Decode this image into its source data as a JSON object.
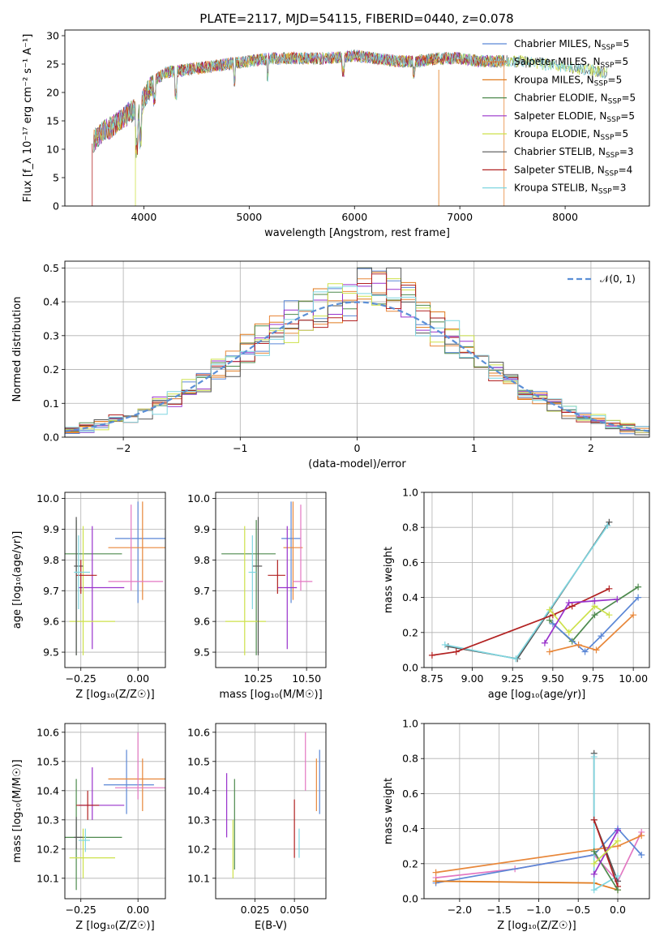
{
  "figure": {
    "title": "PLATE=2117, MJD=54115, FIBERID=0440, z=0.078"
  },
  "colors": {
    "Chabrier MILES": "#5b87d6",
    "Salpeter MILES": "#e8873a",
    "Kroupa MILES": "#e07a1c",
    "Chabrier ELODIE": "#4e8a4e",
    "Salpeter ELODIE": "#9932cc",
    "Kroupa ELODIE": "#cde14a",
    "Chabrier STELIB": "#555555",
    "Salpeter STELIB": "#b22222",
    "Kroupa STELIB": "#7fd6e0",
    "pink": "#e377c2",
    "gauss": "#5b8fd6",
    "grid": "#b0b0b0"
  },
  "chart_data": [
    {
      "id": "spectrum",
      "type": "line",
      "xlabel": "wavelength [Angstrom, rest frame]",
      "ylabel": "Flux [f_λ 10⁻¹⁷ erg cm⁻² s⁻¹ A⁻¹]",
      "xlim": [
        3250,
        8800
      ],
      "ylim": [
        0,
        31
      ],
      "xticks": [
        4000,
        5000,
        6000,
        7000,
        8000
      ],
      "yticks": [
        0,
        5,
        10,
        15,
        20,
        25,
        30
      ],
      "grid": false,
      "legend_position": "right",
      "series": [
        {
          "name": "Chabrier MILES, N_SSP=5"
        },
        {
          "name": "Salpeter MILES, N_SSP=5"
        },
        {
          "name": "Kroupa MILES, N_SSP=5"
        },
        {
          "name": "Chabrier ELODIE, N_SSP=5"
        },
        {
          "name": "Salpeter ELODIE, N_SSP=5"
        },
        {
          "name": "Kroupa ELODIE, N_SSP=5"
        },
        {
          "name": "Chabrier STELIB, N_SSP=3"
        },
        {
          "name": "Salpeter STELIB, N_SSP=4"
        },
        {
          "name": "Kroupa STELIB, N_SSP=3"
        }
      ],
      "continuum": {
        "x": [
          3500,
          3600,
          3700,
          3800,
          3900,
          3950,
          4000,
          4100,
          4200,
          4400,
          4600,
          4800,
          5000,
          5200,
          5400,
          5600,
          5800,
          6000,
          6200,
          6400,
          6600,
          6800,
          7000,
          7200,
          7400,
          7600,
          7800,
          8000,
          8200,
          8400
        ],
        "y": [
          11,
          13,
          14,
          15.5,
          17,
          16,
          19,
          22,
          23.5,
          24,
          24.5,
          25,
          25.5,
          26,
          26,
          26,
          26,
          26.5,
          26,
          25.5,
          25.5,
          26,
          26,
          25.5,
          25.5,
          25.5,
          25,
          24.5,
          24,
          23.5
        ]
      }
    },
    {
      "id": "residuals",
      "type": "step",
      "xlabel": "(data-model)/error",
      "ylabel": "Normed distribution",
      "xlim": [
        -2.5,
        2.5
      ],
      "ylim": [
        0,
        0.52
      ],
      "xticks": [
        -2,
        -1,
        0,
        1,
        2
      ],
      "yticks": [
        0.0,
        0.1,
        0.2,
        0.3,
        0.4,
        0.5
      ],
      "grid": true,
      "legend_position": "top-right",
      "gaussian_label": "𝒩(0, 1)"
    },
    {
      "id": "age_vs_Z",
      "type": "errorbar",
      "xlabel": "Z [log₁₀(Z/Z☉)]",
      "ylabel": "age  [log₁₀(age/yr)]",
      "xlim": [
        -0.32,
        0.12
      ],
      "ylim": [
        9.45,
        10.02
      ],
      "xticks": [
        -0.25,
        0.0
      ],
      "yticks": [
        9.5,
        9.6,
        9.7,
        9.8,
        9.9,
        10.0
      ],
      "grid": true,
      "points": [
        {
          "c": "Chabrier MILES",
          "x": 0.0,
          "xerr": [
            0.1,
            0.12
          ],
          "y": 9.87,
          "yerr": [
            0.21,
            0.12
          ]
        },
        {
          "c": "Salpeter MILES",
          "x": 0.02,
          "xerr": [
            0.15,
            0.1
          ],
          "y": 9.84,
          "yerr": [
            0.17,
            0.15
          ]
        },
        {
          "c": "pink",
          "x": -0.03,
          "xerr": [
            0.1,
            0.14
          ],
          "y": 9.73,
          "yerr": [
            0.03,
            0.25
          ]
        },
        {
          "c": "Chabrier ELODIE",
          "x": -0.27,
          "xerr": [
            0.05,
            0.2
          ],
          "y": 9.82,
          "yerr": [
            0.33,
            0.11
          ]
        },
        {
          "c": "Salpeter ELODIE",
          "x": -0.2,
          "xerr": [
            0.06,
            0.14
          ],
          "y": 9.71,
          "yerr": [
            0.2,
            0.2
          ]
        },
        {
          "c": "Kroupa ELODIE",
          "x": -0.24,
          "xerr": [
            0.06,
            0.14
          ],
          "y": 9.6,
          "yerr": [
            0.11,
            0.31
          ]
        },
        {
          "c": "Chabrier STELIB",
          "x": -0.27,
          "xerr": [
            0.01,
            0.03
          ],
          "y": 9.78,
          "yerr": [
            0.29,
            0.16
          ]
        },
        {
          "c": "Salpeter STELIB",
          "x": -0.25,
          "xerr": [
            0.02,
            0.07
          ],
          "y": 9.75,
          "yerr": [
            0.06,
            0.05
          ]
        },
        {
          "c": "Kroupa STELIB",
          "x": -0.26,
          "xerr": [
            0.02,
            0.05
          ],
          "y": 9.76,
          "yerr": [
            0.12,
            0.12
          ]
        }
      ]
    },
    {
      "id": "age_vs_mass",
      "type": "errorbar",
      "xlabel": "mass [log₁₀(M/M☉)]",
      "ylabel": "",
      "xlim": [
        10.03,
        10.6
      ],
      "ylim": [
        9.45,
        10.02
      ],
      "xticks": [
        10.25,
        10.5
      ],
      "yticks": [
        9.5,
        9.6,
        9.7,
        9.8,
        9.9,
        10.0
      ],
      "grid": true,
      "points": [
        {
          "c": "Chabrier MILES",
          "x": 10.42,
          "xerr": [
            0.05,
            0.05
          ],
          "y": 9.87,
          "yerr": [
            0.21,
            0.12
          ]
        },
        {
          "c": "Salpeter MILES",
          "x": 10.43,
          "xerr": [
            0.05,
            0.05
          ],
          "y": 9.84,
          "yerr": [
            0.17,
            0.15
          ]
        },
        {
          "c": "pink",
          "x": 10.47,
          "xerr": [
            0.04,
            0.06
          ],
          "y": 9.73,
          "yerr": [
            0.03,
            0.25
          ]
        },
        {
          "c": "Chabrier ELODIE",
          "x": 10.24,
          "xerr": [
            0.18,
            0.1
          ],
          "y": 9.82,
          "yerr": [
            0.33,
            0.11
          ]
        },
        {
          "c": "Salpeter ELODIE",
          "x": 10.4,
          "xerr": [
            0.05,
            0.05
          ],
          "y": 9.71,
          "yerr": [
            0.2,
            0.2
          ]
        },
        {
          "c": "Kroupa ELODIE",
          "x": 10.18,
          "xerr": [
            0.1,
            0.11
          ],
          "y": 9.6,
          "yerr": [
            0.11,
            0.31
          ]
        },
        {
          "c": "Chabrier STELIB",
          "x": 10.25,
          "xerr": [
            0.03,
            0.02
          ],
          "y": 9.78,
          "yerr": [
            0.29,
            0.16
          ]
        },
        {
          "c": "Salpeter STELIB",
          "x": 10.35,
          "xerr": [
            0.05,
            0.04
          ],
          "y": 9.75,
          "yerr": [
            0.06,
            0.05
          ]
        },
        {
          "c": "Kroupa STELIB",
          "x": 10.22,
          "xerr": [
            0.02,
            0.02
          ],
          "y": 9.76,
          "yerr": [
            0.12,
            0.12
          ]
        }
      ]
    },
    {
      "id": "weight_vs_age",
      "type": "line",
      "xlabel": "age  [log₁₀(age/yr)]",
      "ylabel": "mass weight",
      "xlim": [
        8.7,
        10.1
      ],
      "ylim": [
        0,
        1.0
      ],
      "xticks": [
        8.75,
        9.0,
        9.25,
        9.5,
        9.75,
        10.0
      ],
      "yticks": [
        0.0,
        0.2,
        0.4,
        0.6,
        0.8,
        1.0
      ],
      "grid": true,
      "series": [
        {
          "c": "Chabrier STELIB",
          "x": [
            8.85,
            9.28,
            9.85
          ],
          "y": [
            0.12,
            0.05,
            0.83
          ]
        },
        {
          "c": "Kroupa STELIB",
          "x": [
            8.83,
            9.27,
            9.84
          ],
          "y": [
            0.13,
            0.05,
            0.81
          ]
        },
        {
          "c": "Salpeter STELIB",
          "x": [
            8.75,
            8.9,
            9.5,
            9.62,
            9.85
          ],
          "y": [
            0.07,
            0.09,
            0.3,
            0.35,
            0.45
          ]
        },
        {
          "c": "Chabrier ELODIE",
          "x": [
            9.48,
            9.62,
            9.76,
            10.03
          ],
          "y": [
            0.27,
            0.15,
            0.3,
            0.46
          ]
        },
        {
          "c": "Chabrier MILES",
          "x": [
            9.5,
            9.7,
            9.8,
            10.03
          ],
          "y": [
            0.25,
            0.09,
            0.18,
            0.4
          ]
        },
        {
          "c": "Salpeter MILES",
          "x": [
            9.48,
            9.66,
            9.77,
            10.0
          ],
          "y": [
            0.09,
            0.13,
            0.1,
            0.3
          ]
        },
        {
          "c": "Kroupa ELODIE",
          "x": [
            9.48,
            9.6,
            9.76,
            9.85
          ],
          "y": [
            0.33,
            0.2,
            0.35,
            0.3
          ]
        },
        {
          "c": "Salpeter ELODIE",
          "x": [
            9.45,
            9.6,
            9.76,
            9.9
          ],
          "y": [
            0.14,
            0.37,
            0.38,
            0.39
          ]
        }
      ]
    },
    {
      "id": "mass_vs_Z",
      "type": "errorbar",
      "xlabel": "Z [log₁₀(Z/Z☉)]",
      "ylabel": "mass [log₁₀(M/M☉)]",
      "xlim": [
        -0.32,
        0.12
      ],
      "ylim": [
        10.03,
        10.63
      ],
      "xticks": [
        -0.25,
        0.0
      ],
      "yticks": [
        10.1,
        10.2,
        10.3,
        10.4,
        10.5,
        10.6
      ],
      "grid": true,
      "points": [
        {
          "c": "Chabrier MILES",
          "x": -0.05,
          "xerr": [
            0.1,
            0.12
          ],
          "y": 10.42,
          "yerr": [
            0.1,
            0.12
          ]
        },
        {
          "c": "Salpeter MILES",
          "x": 0.02,
          "xerr": [
            0.15,
            0.1
          ],
          "y": 10.44,
          "yerr": [
            0.11,
            0.07
          ]
        },
        {
          "c": "pink",
          "x": 0.0,
          "xerr": [
            0.1,
            0.12
          ],
          "y": 10.41,
          "yerr": [
            0.04,
            0.19
          ]
        },
        {
          "c": "Chabrier ELODIE",
          "x": -0.27,
          "xerr": [
            0.05,
            0.2
          ],
          "y": 10.24,
          "yerr": [
            0.18,
            0.2
          ]
        },
        {
          "c": "Salpeter ELODIE",
          "x": -0.2,
          "xerr": [
            0.06,
            0.14
          ],
          "y": 10.35,
          "yerr": [
            0.05,
            0.13
          ]
        },
        {
          "c": "Kroupa ELODIE",
          "x": -0.24,
          "xerr": [
            0.06,
            0.14
          ],
          "y": 10.17,
          "yerr": [
            0.07,
            0.1
          ]
        },
        {
          "c": "Chabrier STELIB",
          "x": -0.27,
          "xerr": [
            0.01,
            0.03
          ],
          "y": 10.24,
          "yerr": [
            0.04,
            0.07
          ]
        },
        {
          "c": "Salpeter STELIB",
          "x": -0.22,
          "xerr": [
            0.05,
            0.05
          ],
          "y": 10.35,
          "yerr": [
            0.05,
            0.05
          ]
        },
        {
          "c": "Kroupa STELIB",
          "x": -0.23,
          "xerr": [
            0.03,
            0.02
          ],
          "y": 10.23,
          "yerr": [
            0.04,
            0.04
          ]
        }
      ]
    },
    {
      "id": "mass_vs_ebv",
      "type": "errorbar",
      "xlabel": "E(B-V)",
      "ylabel": "",
      "xlim": [
        0.0,
        0.07
      ],
      "ylim": [
        10.03,
        10.63
      ],
      "xticks": [
        0.025,
        0.05
      ],
      "yticks": [
        10.1,
        10.2,
        10.3,
        10.4,
        10.5,
        10.6
      ],
      "grid": true,
      "points": [
        {
          "c": "Chabrier MILES",
          "x": 0.066,
          "xerr": [
            0,
            0
          ],
          "y": 10.42,
          "yerr": [
            0.1,
            0.12
          ]
        },
        {
          "c": "Salpeter MILES",
          "x": 0.064,
          "xerr": [
            0,
            0
          ],
          "y": 10.42,
          "yerr": [
            0.09,
            0.09
          ]
        },
        {
          "c": "pink",
          "x": 0.057,
          "xerr": [
            0,
            0
          ],
          "y": 10.5,
          "yerr": [
            0.1,
            0.1
          ]
        },
        {
          "c": "Chabrier ELODIE",
          "x": 0.012,
          "xerr": [
            0,
            0
          ],
          "y": 10.35,
          "yerr": [
            0.22,
            0.09
          ]
        },
        {
          "c": "Salpeter ELODIE",
          "x": 0.007,
          "xerr": [
            0,
            0
          ],
          "y": 10.35,
          "yerr": [
            0.11,
            0.11
          ]
        },
        {
          "c": "Kroupa ELODIE",
          "x": 0.011,
          "xerr": [
            0,
            0
          ],
          "y": 10.2,
          "yerr": [
            0.1,
            0.1
          ]
        },
        {
          "c": "Salpeter STELIB",
          "x": 0.05,
          "xerr": [
            0,
            0
          ],
          "y": 10.27,
          "yerr": [
            0.1,
            0.1
          ]
        },
        {
          "c": "Kroupa STELIB",
          "x": 0.053,
          "xerr": [
            0,
            0
          ],
          "y": 10.22,
          "yerr": [
            0.05,
            0.05
          ]
        }
      ]
    },
    {
      "id": "weight_vs_Z",
      "type": "line",
      "xlabel": "Z [log₁₀(Z/Z☉)]",
      "ylabel": "mass weight",
      "xlim": [
        -2.45,
        0.4
      ],
      "ylim": [
        0,
        1.0
      ],
      "xticks": [
        -2.0,
        -1.5,
        -1.0,
        -0.5,
        0.0
      ],
      "yticks": [
        0.0,
        0.2,
        0.4,
        0.6,
        0.8,
        1.0
      ],
      "grid": true,
      "series": [
        {
          "c": "pink",
          "x": [
            -2.3,
            -1.3,
            -0.3,
            0.0,
            0.3
          ],
          "y": [
            0.12,
            0.17,
            0.25,
            0.1,
            0.38
          ]
        },
        {
          "c": "Chabrier MILES",
          "x": [
            -2.3,
            -0.3,
            0.0,
            0.3
          ],
          "y": [
            0.09,
            0.25,
            0.4,
            0.25
          ]
        },
        {
          "c": "Salpeter MILES",
          "x": [
            -2.3,
            0.0,
            0.3
          ],
          "y": [
            0.15,
            0.3,
            0.36
          ]
        },
        {
          "c": "Kroupa MILES",
          "x": [
            -2.3,
            -0.3,
            0.0
          ],
          "y": [
            0.1,
            0.09,
            0.05
          ]
        },
        {
          "c": "Chabrier STELIB",
          "x": [
            -0.3,
            -0.3,
            0.0
          ],
          "y": [
            0.83,
            0.45,
            0.1
          ]
        },
        {
          "c": "Kroupa STELIB",
          "x": [
            -0.3,
            -0.3,
            0.0
          ],
          "y": [
            0.81,
            0.05,
            0.13
          ]
        },
        {
          "c": "Salpeter STELIB",
          "x": [
            -0.3,
            0.0
          ],
          "y": [
            0.45,
            0.07
          ]
        },
        {
          "c": "Chabrier ELODIE",
          "x": [
            -0.3,
            0.0
          ],
          "y": [
            0.27,
            0.05
          ]
        },
        {
          "c": "Salpeter ELODIE",
          "x": [
            -0.3,
            0.0
          ],
          "y": [
            0.14,
            0.39
          ]
        },
        {
          "c": "Kroupa ELODIE",
          "x": [
            -0.3,
            0.0
          ],
          "y": [
            0.2,
            0.33
          ]
        }
      ]
    }
  ]
}
